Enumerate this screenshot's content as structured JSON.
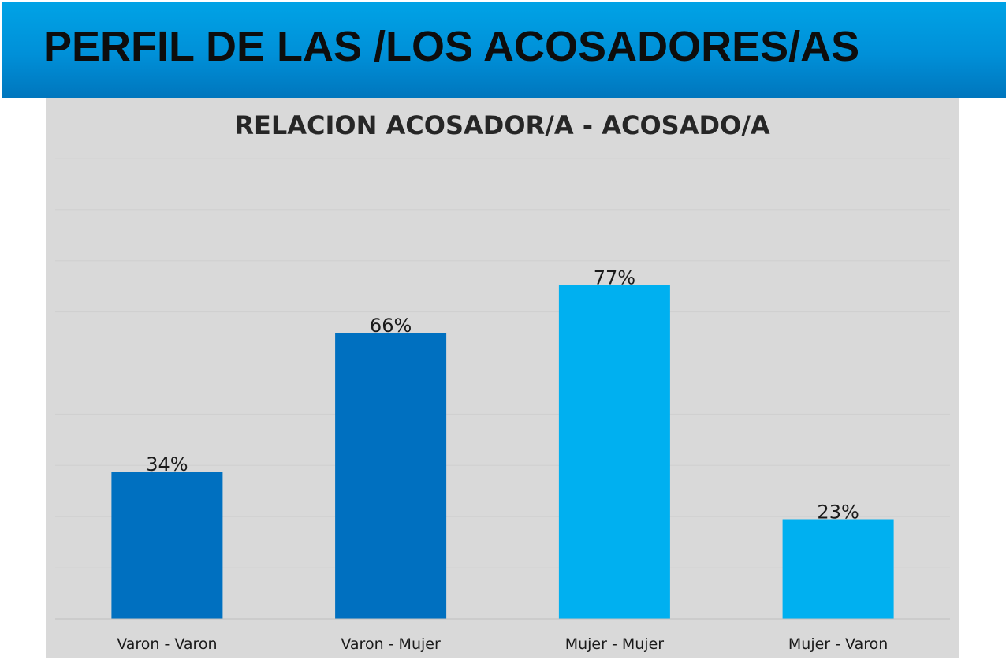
{
  "header": {
    "title": "PERFIL DE LAS /LOS ACOSADORES/AS"
  },
  "colors": {
    "banner": "#0090d8",
    "chart_background": "#d9d9d9",
    "bar_dark": "#0070c0",
    "bar_light": "#00b0f0",
    "gridline": "#cfcfcf"
  },
  "chart_data": {
    "type": "bar",
    "title": "RELACION ACOSADOR/A - ACOSADO/A",
    "categories": [
      "Varon - Varon",
      "Varon - Mujer",
      "Mujer - Mujer",
      "Mujer - Varon"
    ],
    "values": [
      34,
      66,
      77,
      23
    ],
    "value_labels": [
      "34%",
      "66%",
      "77%",
      "23%"
    ],
    "bar_colors": [
      "#0070c0",
      "#0070c0",
      "#00b0f0",
      "#00b0f0"
    ],
    "unit": "%",
    "xlabel": "",
    "ylabel": "",
    "ylim": [
      0,
      90
    ],
    "grid": true,
    "legend": "none"
  }
}
